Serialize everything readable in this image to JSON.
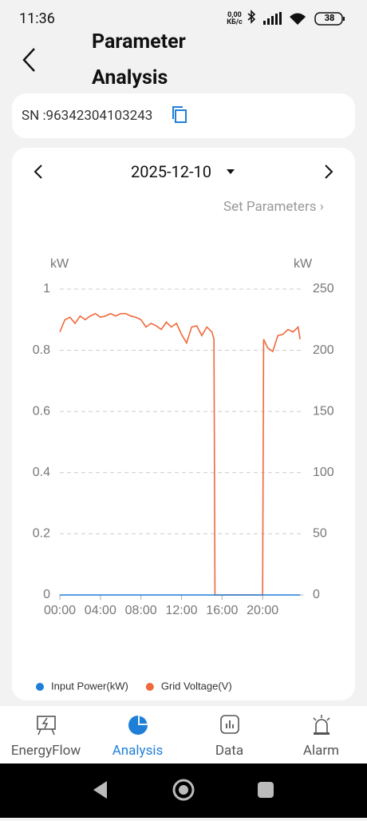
{
  "status_bar": {
    "time": "11:36",
    "speed": "0,00 КБ/с",
    "battery": "38"
  },
  "header": {
    "title": "Parameter Analysis"
  },
  "device": {
    "sn": "SN :96342304103243"
  },
  "date_selector": {
    "date": "2025-12-10"
  },
  "set_parameters": "Set Parameters",
  "chart_data": {
    "type": "line",
    "y_unit": "kW",
    "y2_unit": "kW",
    "x": [
      0,
      0.5,
      1,
      1.5,
      2,
      2.5,
      3,
      3.5,
      4,
      4.5,
      5,
      5.5,
      6,
      6.5,
      7,
      7.5,
      8,
      8.5,
      9,
      9.5,
      10,
      10.5,
      11,
      11.5,
      12,
      12.5,
      13,
      13.5,
      14,
      14.5,
      15,
      15.2,
      15.3,
      20,
      20.1,
      20.5,
      21,
      21.5,
      22,
      22.5,
      23,
      23.5,
      23.7
    ],
    "xlim": [
      0,
      24
    ],
    "xticks": [
      {
        "value": 0,
        "label": "00:00"
      },
      {
        "value": 4,
        "label": "04:00"
      },
      {
        "value": 8,
        "label": "08:00"
      },
      {
        "value": 12,
        "label": "12:00"
      },
      {
        "value": 16,
        "label": "16:00"
      },
      {
        "value": 20,
        "label": "20:00"
      }
    ],
    "ylim": [
      0,
      1
    ],
    "yticks": [
      0,
      0.2,
      0.4,
      0.6,
      0.8,
      1
    ],
    "y2lim": [
      0,
      250
    ],
    "y2ticks": [
      0,
      50,
      100,
      150,
      200,
      250
    ],
    "grid": true,
    "series": [
      {
        "name": "Input Power(kW)",
        "color": "#1e7fd8",
        "values": [
          0,
          0,
          0,
          0,
          0,
          0,
          0,
          0,
          0,
          0,
          0,
          0,
          0,
          0,
          0,
          0,
          0,
          0,
          0,
          0,
          0,
          0,
          0,
          0,
          0,
          0,
          0,
          0,
          0,
          0,
          0,
          0,
          0,
          0,
          0,
          0,
          0,
          0,
          0,
          0,
          0,
          0,
          0
        ]
      },
      {
        "name": "Grid Voltage(V)",
        "color": "#f0683b",
        "axis": "y2",
        "values": [
          215,
          225,
          227,
          222,
          228,
          225,
          228,
          230,
          227,
          228,
          230,
          228,
          230,
          230,
          228,
          227,
          225,
          219,
          222,
          220,
          217,
          223,
          219,
          222,
          213,
          206,
          219,
          220,
          212,
          219,
          215,
          209,
          0,
          0,
          209,
          202,
          199,
          212,
          213,
          217,
          215,
          219,
          209
        ]
      }
    ]
  },
  "nav": [
    "EnergyFlow",
    "Analysis",
    "Data",
    "Alarm"
  ]
}
